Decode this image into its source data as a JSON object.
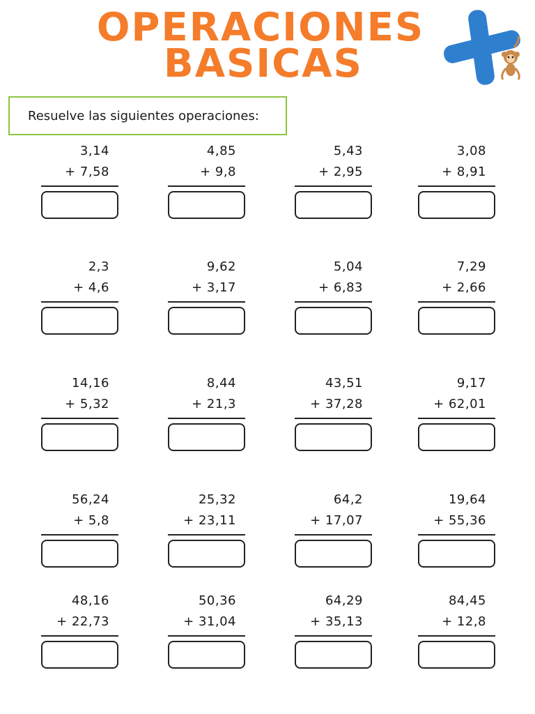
{
  "title": {
    "line1": "OPERACIONES",
    "line2": "BASICAS",
    "color": "#f47c2a"
  },
  "logo": {
    "icon": "plus-icon",
    "mascot": "monkey-icon",
    "color": "#2f7fcf"
  },
  "instructions": {
    "text": "Resuelve las siguientes operaciones:",
    "border_color": "#8cc63f"
  },
  "rows": [
    [
      {
        "a": "3,14",
        "b": "+ 7,58"
      },
      {
        "a": "4,85",
        "b": "+ 9,8"
      },
      {
        "a": "5,43",
        "b": "+ 2,95"
      },
      {
        "a": "3,08",
        "b": "+ 8,91"
      }
    ],
    [
      {
        "a": "2,3",
        "b": "+ 4,6"
      },
      {
        "a": "9,62",
        "b": "+ 3,17"
      },
      {
        "a": "5,04",
        "b": "+ 6,83"
      },
      {
        "a": "7,29",
        "b": "+ 2,66"
      }
    ],
    [
      {
        "a": "14,16",
        "b": "+ 5,32"
      },
      {
        "a": "8,44",
        "b": "+ 21,3"
      },
      {
        "a": "43,51",
        "b": "+ 37,28"
      },
      {
        "a": "9,17",
        "b": "+ 62,01"
      }
    ],
    [
      {
        "a": "56,24",
        "b": "+ 5,8"
      },
      {
        "a": "25,32",
        "b": "+ 23,11"
      },
      {
        "a": "64,2",
        "b": "+ 17,07"
      },
      {
        "a": "19,64",
        "b": "+ 55,36"
      }
    ],
    [
      {
        "a": "48,16",
        "b": "+ 22,73"
      },
      {
        "a": "50,36",
        "b": "+ 31,04"
      },
      {
        "a": "64,29",
        "b": "+ 35,13"
      },
      {
        "a": "84,45",
        "b": "+ 12,8"
      }
    ]
  ]
}
